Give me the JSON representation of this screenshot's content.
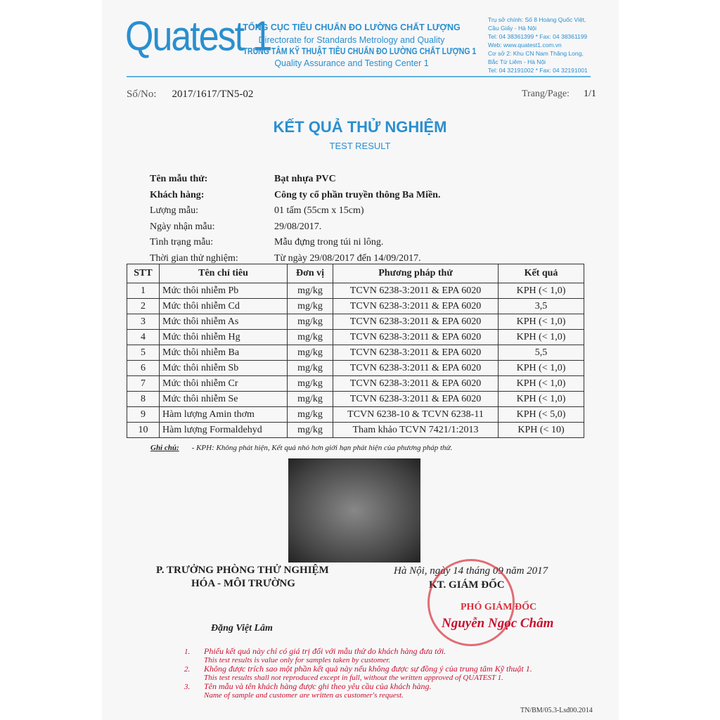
{
  "header": {
    "logo": "Quatest 1",
    "org_vn": "TỔNG CỤC TIÊU CHUẨN ĐO LƯỜNG CHẤT LƯỢNG",
    "org_en": "Directorate for Standards Metrology and Quality",
    "center_vn": "TRUNG TÂM KỸ THUẬT TIÊU CHUẨN ĐO LƯỜNG CHẤT LƯỢNG 1",
    "center_en": "Quality Assurance and Testing Center 1",
    "contact": [
      "Trụ sở chính: Số 8 Hoàng Quốc Việt,",
      "Cầu Giấy - Hà Nội",
      "Tel: 04 38361399 * Fax: 04 38361199",
      "Web: www.quatest1.com.vn",
      "Cơ sở 2: Khu CN Nam Thăng Long,",
      "Bắc Từ Liêm - Hà Nội",
      "Tel: 04 32191002 * Fax: 04 32191001"
    ]
  },
  "doc": {
    "no_label": "Số/No:",
    "no": "2017/1617/TN5-02",
    "page_label": "Trang/Page:",
    "page": "1/1",
    "title_vn": "KẾT QUẢ THỬ NGHIỆM",
    "title_en": "TEST RESULT"
  },
  "info": [
    {
      "label": "Tên mẫu thử:",
      "value": "Bạt nhựa PVC"
    },
    {
      "label": "Khách hàng:",
      "value": "Công ty cổ phần truyền thông Ba Miền."
    },
    {
      "label": "Lượng mẫu:",
      "value": "01 tấm (55cm x 15cm)"
    },
    {
      "label": "Ngày nhận mẫu:",
      "value": "29/08/2017."
    },
    {
      "label": "Tình trạng mẫu:",
      "value": "Mẫu đựng trong túi ni lông."
    },
    {
      "label": "Thời gian thử nghiệm:",
      "value": "Từ ngày 29/08/2017 đến 14/09/2017."
    }
  ],
  "table": {
    "headers": [
      "STT",
      "Tên chỉ tiêu",
      "Đơn vị",
      "Phương pháp thử",
      "Kết quả"
    ],
    "rows": [
      [
        "1",
        "Mức thôi nhiễm  Pb",
        "mg/kg",
        "TCVN 6238-3:2011 & EPA 6020",
        "KPH (< 1,0)"
      ],
      [
        "2",
        "Mức thôi nhiễm  Cd",
        "mg/kg",
        "TCVN 6238-3:2011 & EPA 6020",
        "3,5"
      ],
      [
        "3",
        "Mức thôi nhiễm  As",
        "mg/kg",
        "TCVN 6238-3:2011 & EPA 6020",
        "KPH (< 1,0)"
      ],
      [
        "4",
        "Mức thôi nhiễm  Hg",
        "mg/kg",
        "TCVN 6238-3:2011 & EPA 6020",
        "KPH (< 1,0)"
      ],
      [
        "5",
        "Mức thôi nhiễm  Ba",
        "mg/kg",
        "TCVN 6238-3:2011 & EPA 6020",
        "5,5"
      ],
      [
        "6",
        "Mức thôi nhiễm  Sb",
        "mg/kg",
        "TCVN 6238-3:2011 & EPA 6020",
        "KPH (< 1,0)"
      ],
      [
        "7",
        "Mức thôi nhiễm  Cr",
        "mg/kg",
        "TCVN 6238-3:2011 & EPA 6020",
        "KPH (< 1,0)"
      ],
      [
        "8",
        "Mức thôi nhiễm  Se",
        "mg/kg",
        "TCVN 6238-3:2011 & EPA 6020",
        "KPH (< 1,0)"
      ],
      [
        "9",
        "Hàm lượng Amin thơm",
        "mg/kg",
        "TCVN 6238-10 & TCVN 6238-11",
        "KPH (< 5,0)"
      ],
      [
        "10",
        "Hàm lượng Formaldehyd",
        "mg/kg",
        "Tham khảo TCVN 7421/1:2013",
        "KPH (< 10)"
      ]
    ]
  },
  "note": {
    "label": "Ghi chú:",
    "text": "- KPH: Không phát hiện, Kết quả nhỏ hơn giới hạn phát hiện của phương pháp thử."
  },
  "sign": {
    "left_title1": "P. TRƯỞNG PHÒNG THỬ NGHIỆM",
    "left_title2": "HÓA - MÔI TRƯỜNG",
    "left_name": "Đặng Việt Lâm",
    "date": "Hà Nội, ngày 14 tháng 09 năm 2017",
    "right_title": "KT. GIÁM ĐỐC",
    "right_sub": "PHÓ GIÁM ĐỐC",
    "right_name": "Nguyễn Ngọc Châm"
  },
  "footer": {
    "notes": [
      {
        "n": "1.",
        "vn": "Phiếu kết quả này chỉ có giá trị đối với mẫu thử do khách hàng đưa tới.",
        "en": "This test results is value only for samples taken by customer."
      },
      {
        "n": "2.",
        "vn": "Không được trích sao một phần kết quả này nếu không được sự đồng ý của trung tâm Kỹ thuật 1.",
        "en": "This test results shall not reproduced except in full, without the written approved of QUATEST 1."
      },
      {
        "n": "3.",
        "vn": "Tên mẫu và tên khách hàng được ghi theo yêu cầu của khách hàng.",
        "en": "Name of sample and customer are written as customer's request."
      }
    ],
    "code": "TN/BM/05.3-Lsđ00.2014"
  }
}
